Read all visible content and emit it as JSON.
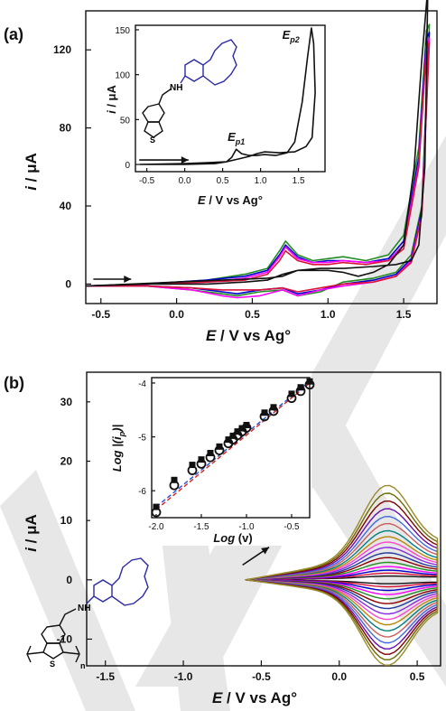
{
  "figure": {
    "panel_a_label": "(a)",
    "panel_b_label": "(b)",
    "watermark_color": "#d4d4d4"
  },
  "molecule": {
    "amine_label": "NH",
    "sulfur_label": "S",
    "repeat_label": "n",
    "crown_color": "#2a2aa8"
  },
  "chart_data": [
    {
      "id": "a_main",
      "type": "line",
      "xlabel_var": "E",
      "xlabel_rest": " / V vs Ag°",
      "ylabel_var": "i",
      "ylabel_rest": " / μA",
      "xlim": [
        -0.6,
        1.72
      ],
      "ylim": [
        -10,
        140
      ],
      "xticks": [
        -0.5,
        0.0,
        0.5,
        1.0,
        1.5
      ],
      "xtick_labels": [
        "-0.5",
        "0.0",
        "0.5",
        "1.0",
        "1.5"
      ],
      "yticks": [
        0,
        40,
        80,
        120
      ],
      "ytick_labels": [
        "0",
        "40",
        "80",
        "120"
      ],
      "series": [
        {
          "color": "#228B22",
          "upper": [
            [
              -0.6,
              -1
            ],
            [
              -0.2,
              0
            ],
            [
              0.2,
              2
            ],
            [
              0.45,
              5
            ],
            [
              0.6,
              8
            ],
            [
              0.68,
              17
            ],
            [
              0.72,
              22
            ],
            [
              0.8,
              15
            ],
            [
              0.9,
              12
            ],
            [
              1.0,
              13
            ],
            [
              1.1,
              14
            ],
            [
              1.25,
              12
            ],
            [
              1.4,
              15
            ],
            [
              1.5,
              25
            ],
            [
              1.6,
              70
            ],
            [
              1.65,
              130
            ],
            [
              1.67,
              133
            ]
          ],
          "lower": [
            [
              1.67,
              133
            ],
            [
              1.62,
              40
            ],
            [
              1.55,
              15
            ],
            [
              1.45,
              6
            ],
            [
              1.3,
              3
            ],
            [
              1.1,
              1
            ],
            [
              0.95,
              -4
            ],
            [
              0.8,
              -6
            ],
            [
              0.7,
              -3
            ],
            [
              0.55,
              -4
            ],
            [
              0.4,
              -6
            ],
            [
              0.3,
              -5
            ],
            [
              0.1,
              -3
            ],
            [
              -0.2,
              -1
            ],
            [
              -0.6,
              -1
            ]
          ]
        },
        {
          "color": "#0000cd",
          "upper": [
            [
              -0.6,
              -1
            ],
            [
              -0.2,
              0
            ],
            [
              0.2,
              2
            ],
            [
              0.45,
              4
            ],
            [
              0.6,
              7
            ],
            [
              0.68,
              15
            ],
            [
              0.72,
              20
            ],
            [
              0.8,
              14
            ],
            [
              0.9,
              11
            ],
            [
              1.0,
              12
            ],
            [
              1.1,
              12
            ],
            [
              1.25,
              11
            ],
            [
              1.4,
              13
            ],
            [
              1.5,
              22
            ],
            [
              1.6,
              65
            ],
            [
              1.65,
              126
            ],
            [
              1.67,
              129
            ]
          ],
          "lower": [
            [
              1.67,
              129
            ],
            [
              1.62,
              38
            ],
            [
              1.55,
              13
            ],
            [
              1.45,
              5
            ],
            [
              1.3,
              2
            ],
            [
              1.1,
              0
            ],
            [
              0.95,
              -3
            ],
            [
              0.8,
              -5
            ],
            [
              0.7,
              -2
            ],
            [
              0.55,
              -3
            ],
            [
              0.4,
              -5
            ],
            [
              0.3,
              -4
            ],
            [
              0.1,
              -2
            ],
            [
              -0.2,
              -1
            ],
            [
              -0.6,
              -1
            ]
          ]
        },
        {
          "color": "#ff00ff",
          "upper": [
            [
              -0.6,
              -1
            ],
            [
              -0.2,
              0
            ],
            [
              0.2,
              1
            ],
            [
              0.45,
              3
            ],
            [
              0.6,
              6
            ],
            [
              0.68,
              14
            ],
            [
              0.72,
              19
            ],
            [
              0.8,
              13
            ],
            [
              0.9,
              11
            ],
            [
              1.0,
              11
            ],
            [
              1.1,
              12
            ],
            [
              1.25,
              11
            ],
            [
              1.4,
              12
            ],
            [
              1.5,
              20
            ],
            [
              1.6,
              62
            ],
            [
              1.65,
              122
            ],
            [
              1.67,
              126
            ]
          ],
          "lower": [
            [
              1.67,
              126
            ],
            [
              1.62,
              36
            ],
            [
              1.55,
              12
            ],
            [
              1.45,
              4
            ],
            [
              1.3,
              1
            ],
            [
              1.1,
              -1
            ],
            [
              0.95,
              -3
            ],
            [
              0.8,
              -6
            ],
            [
              0.7,
              -3
            ],
            [
              0.55,
              -6
            ],
            [
              0.4,
              -7
            ],
            [
              0.3,
              -6
            ],
            [
              0.1,
              -3
            ],
            [
              -0.2,
              -1
            ],
            [
              -0.6,
              -1
            ]
          ]
        },
        {
          "color": "#dc143c",
          "upper": [
            [
              -0.6,
              -1
            ],
            [
              -0.2,
              0
            ],
            [
              0.2,
              1
            ],
            [
              0.45,
              2
            ],
            [
              0.6,
              5
            ],
            [
              0.68,
              12
            ],
            [
              0.72,
              17
            ],
            [
              0.8,
              12
            ],
            [
              0.9,
              10
            ],
            [
              1.0,
              10
            ],
            [
              1.1,
              11
            ],
            [
              1.25,
              10
            ],
            [
              1.4,
              12
            ],
            [
              1.5,
              18
            ],
            [
              1.6,
              60
            ],
            [
              1.65,
              120
            ],
            [
              1.67,
              124
            ]
          ],
          "lower": [
            [
              1.67,
              124
            ],
            [
              1.62,
              35
            ],
            [
              1.55,
              11
            ],
            [
              1.45,
              4
            ],
            [
              1.3,
              1
            ],
            [
              1.1,
              0
            ],
            [
              0.95,
              -2
            ],
            [
              0.8,
              -4
            ],
            [
              0.7,
              -2
            ],
            [
              0.55,
              -3
            ],
            [
              0.4,
              -3
            ],
            [
              0.3,
              -3
            ],
            [
              0.1,
              -2
            ],
            [
              -0.2,
              -1
            ],
            [
              -0.6,
              -1
            ]
          ]
        },
        {
          "color": "#111111",
          "upper": [
            [
              -0.6,
              -1
            ],
            [
              -0.2,
              0
            ],
            [
              0.2,
              0
            ],
            [
              0.45,
              1
            ],
            [
              0.6,
              2
            ],
            [
              0.7,
              5
            ],
            [
              0.8,
              7
            ],
            [
              0.9,
              7
            ],
            [
              1.0,
              7
            ],
            [
              1.1,
              6
            ],
            [
              1.2,
              4
            ],
            [
              1.3,
              6
            ],
            [
              1.4,
              10
            ],
            [
              1.5,
              20
            ],
            [
              1.57,
              60
            ],
            [
              1.62,
              115
            ],
            [
              1.66,
              152
            ]
          ],
          "lower": [
            [
              1.66,
              152
            ],
            [
              1.64,
              60
            ],
            [
              1.6,
              20
            ],
            [
              1.55,
              12
            ],
            [
              1.45,
              10
            ],
            [
              1.3,
              9
            ],
            [
              1.1,
              8
            ],
            [
              0.95,
              8
            ],
            [
              0.8,
              7
            ],
            [
              0.7,
              4
            ],
            [
              0.6,
              3
            ],
            [
              0.3,
              2
            ],
            [
              0.0,
              1
            ],
            [
              -0.3,
              0
            ],
            [
              -0.6,
              -1
            ]
          ]
        }
      ],
      "arrow_from": [
        -0.55,
        2.5
      ],
      "arrow_to": [
        -0.3,
        2.5
      ]
    },
    {
      "id": "a_inset",
      "type": "line",
      "xlabel_var": "E",
      "xlabel_rest": " / V vs Ag°",
      "ylabel_var": "i",
      "ylabel_rest": " / μA",
      "xlim": [
        -0.65,
        1.85
      ],
      "ylim": [
        -8,
        155
      ],
      "xticks": [
        -0.5,
        0.0,
        0.5,
        1.0,
        1.5
      ],
      "xtick_labels": [
        "-0.5",
        "0.0",
        "0.5",
        "1.0",
        "1.5"
      ],
      "yticks": [
        0,
        50,
        100,
        150
      ],
      "ytick_labels": [
        "0",
        "50",
        "100",
        "150"
      ],
      "series": [
        {
          "color": "#111111",
          "upper": [
            [
              -0.6,
              0
            ],
            [
              0.0,
              0
            ],
            [
              0.4,
              1
            ],
            [
              0.55,
              3
            ],
            [
              0.62,
              8
            ],
            [
              0.68,
              17
            ],
            [
              0.75,
              12
            ],
            [
              0.85,
              10
            ],
            [
              0.95,
              10
            ],
            [
              1.05,
              11
            ],
            [
              1.2,
              10
            ],
            [
              1.35,
              13
            ],
            [
              1.45,
              25
            ],
            [
              1.55,
              70
            ],
            [
              1.62,
              120
            ],
            [
              1.67,
              152
            ]
          ],
          "lower": [
            [
              1.67,
              152
            ],
            [
              1.7,
              135
            ],
            [
              1.72,
              80
            ],
            [
              1.68,
              30
            ],
            [
              1.6,
              20
            ],
            [
              1.45,
              14
            ],
            [
              1.25,
              13
            ],
            [
              1.05,
              14
            ],
            [
              0.95,
              12
            ],
            [
              0.85,
              9
            ],
            [
              0.7,
              6
            ],
            [
              0.55,
              3
            ],
            [
              0.3,
              2
            ],
            [
              0.0,
              1
            ],
            [
              -0.6,
              0
            ]
          ]
        }
      ],
      "annotations": [
        {
          "var": "E",
          "sub": "p1",
          "x": 0.68,
          "y": 26
        },
        {
          "var": "E",
          "sub": "p2",
          "x": 1.4,
          "y": 140
        }
      ],
      "arrow_from": [
        -0.6,
        5
      ],
      "arrow_to": [
        0.05,
        5
      ]
    },
    {
      "id": "b_main",
      "type": "line",
      "xlabel_var": "E",
      "xlabel_rest": " / V vs Ag°",
      "ylabel_var": "i",
      "ylabel_rest": " / μA",
      "xlim": [
        -1.62,
        0.65
      ],
      "ylim": [
        -14.5,
        35
      ],
      "xticks": [
        -1.5,
        -1.0,
        -0.5,
        0.0,
        0.5
      ],
      "xtick_labels": [
        "-1.5",
        "-1.0",
        "-0.5",
        "0.0",
        "0.5"
      ],
      "yticks": [
        -10,
        0,
        10,
        20,
        30
      ],
      "ytick_labels": [
        "-10",
        "0",
        "10",
        "20",
        "30"
      ],
      "cv_family": {
        "anodic_peaks": [
          0.4,
          0.9,
          1.4,
          2.0,
          2.7,
          3.5,
          4.3,
          5.2,
          6.1,
          7.0,
          8.0,
          9.2,
          10.4,
          11.7,
          13.0,
          14.3,
          15.6
        ],
        "cathodic_peaks": [
          0.5,
          1.0,
          1.6,
          2.3,
          3.0,
          3.8,
          4.6,
          5.5,
          6.4,
          7.3,
          8.3,
          9.3,
          10.3,
          11.3,
          12.2,
          13.1,
          14.0
        ],
        "colors": [
          "#111111",
          "#dc143c",
          "#0000cd",
          "#ff00ff",
          "#228B22",
          "#8b0000",
          "#1e3a9c",
          "#8a2be2",
          "#ff44cc",
          "#b8860b",
          "#008080",
          "#cd5c5c",
          "#4169e1",
          "#6a0dad",
          "#800000",
          "#6b6b00",
          "#9b8a2e"
        ],
        "e_start": -0.6,
        "e_switch": 0.63
      },
      "arrow_from": [
        -0.62,
        2.5
      ],
      "arrow_to": [
        -0.45,
        5.5
      ]
    },
    {
      "id": "b_inset",
      "type": "scatter",
      "xlabel_var": "Log",
      "xlabel_rest": " (v)",
      "ylabel_text": "Log |(i",
      "ylabel_sub": "p",
      "ylabel_end": ")|",
      "xlim": [
        -2.05,
        -0.3
      ],
      "ylim": [
        -6.5,
        -3.9
      ],
      "xticks": [
        -2.0,
        -1.5,
        -1.0,
        -0.5
      ],
      "xtick_labels": [
        "-2.0",
        "-1.5",
        "-1.0",
        "-0.5"
      ],
      "yticks": [
        -6,
        -5,
        -4
      ],
      "ytick_labels": [
        "-6",
        "-5",
        "-4"
      ],
      "series": [
        {
          "marker": "square-filled",
          "color": "#111111",
          "x": [
            -2.0,
            -1.8,
            -1.6,
            -1.5,
            -1.4,
            -1.3,
            -1.2,
            -1.15,
            -1.1,
            -1.05,
            -1.0,
            -0.8,
            -0.7,
            -0.5,
            -0.4,
            -0.3
          ],
          "y": [
            -6.3,
            -5.8,
            -5.52,
            -5.42,
            -5.3,
            -5.18,
            -5.05,
            -4.98,
            -4.9,
            -4.84,
            -4.78,
            -4.55,
            -4.45,
            -4.2,
            -4.08,
            -3.97
          ]
        },
        {
          "marker": "circle-open",
          "color": "#111111",
          "x": [
            -2.0,
            -1.8,
            -1.6,
            -1.5,
            -1.4,
            -1.3,
            -1.2,
            -1.15,
            -1.1,
            -1.05,
            -1.0,
            -0.8,
            -0.7,
            -0.5,
            -0.4,
            -0.3
          ],
          "y": [
            -6.4,
            -5.9,
            -5.62,
            -5.5,
            -5.38,
            -5.25,
            -5.12,
            -5.05,
            -4.97,
            -4.9,
            -4.83,
            -4.62,
            -4.52,
            -4.28,
            -4.15,
            -4.03
          ]
        }
      ],
      "fits": [
        {
          "color": "#dd2222",
          "from": [
            -2.0,
            -6.35
          ],
          "to": [
            -0.3,
            -4.0
          ]
        },
        {
          "color": "#2255dd",
          "from": [
            -2.0,
            -6.3
          ],
          "to": [
            -0.3,
            -3.97
          ]
        }
      ]
    }
  ]
}
